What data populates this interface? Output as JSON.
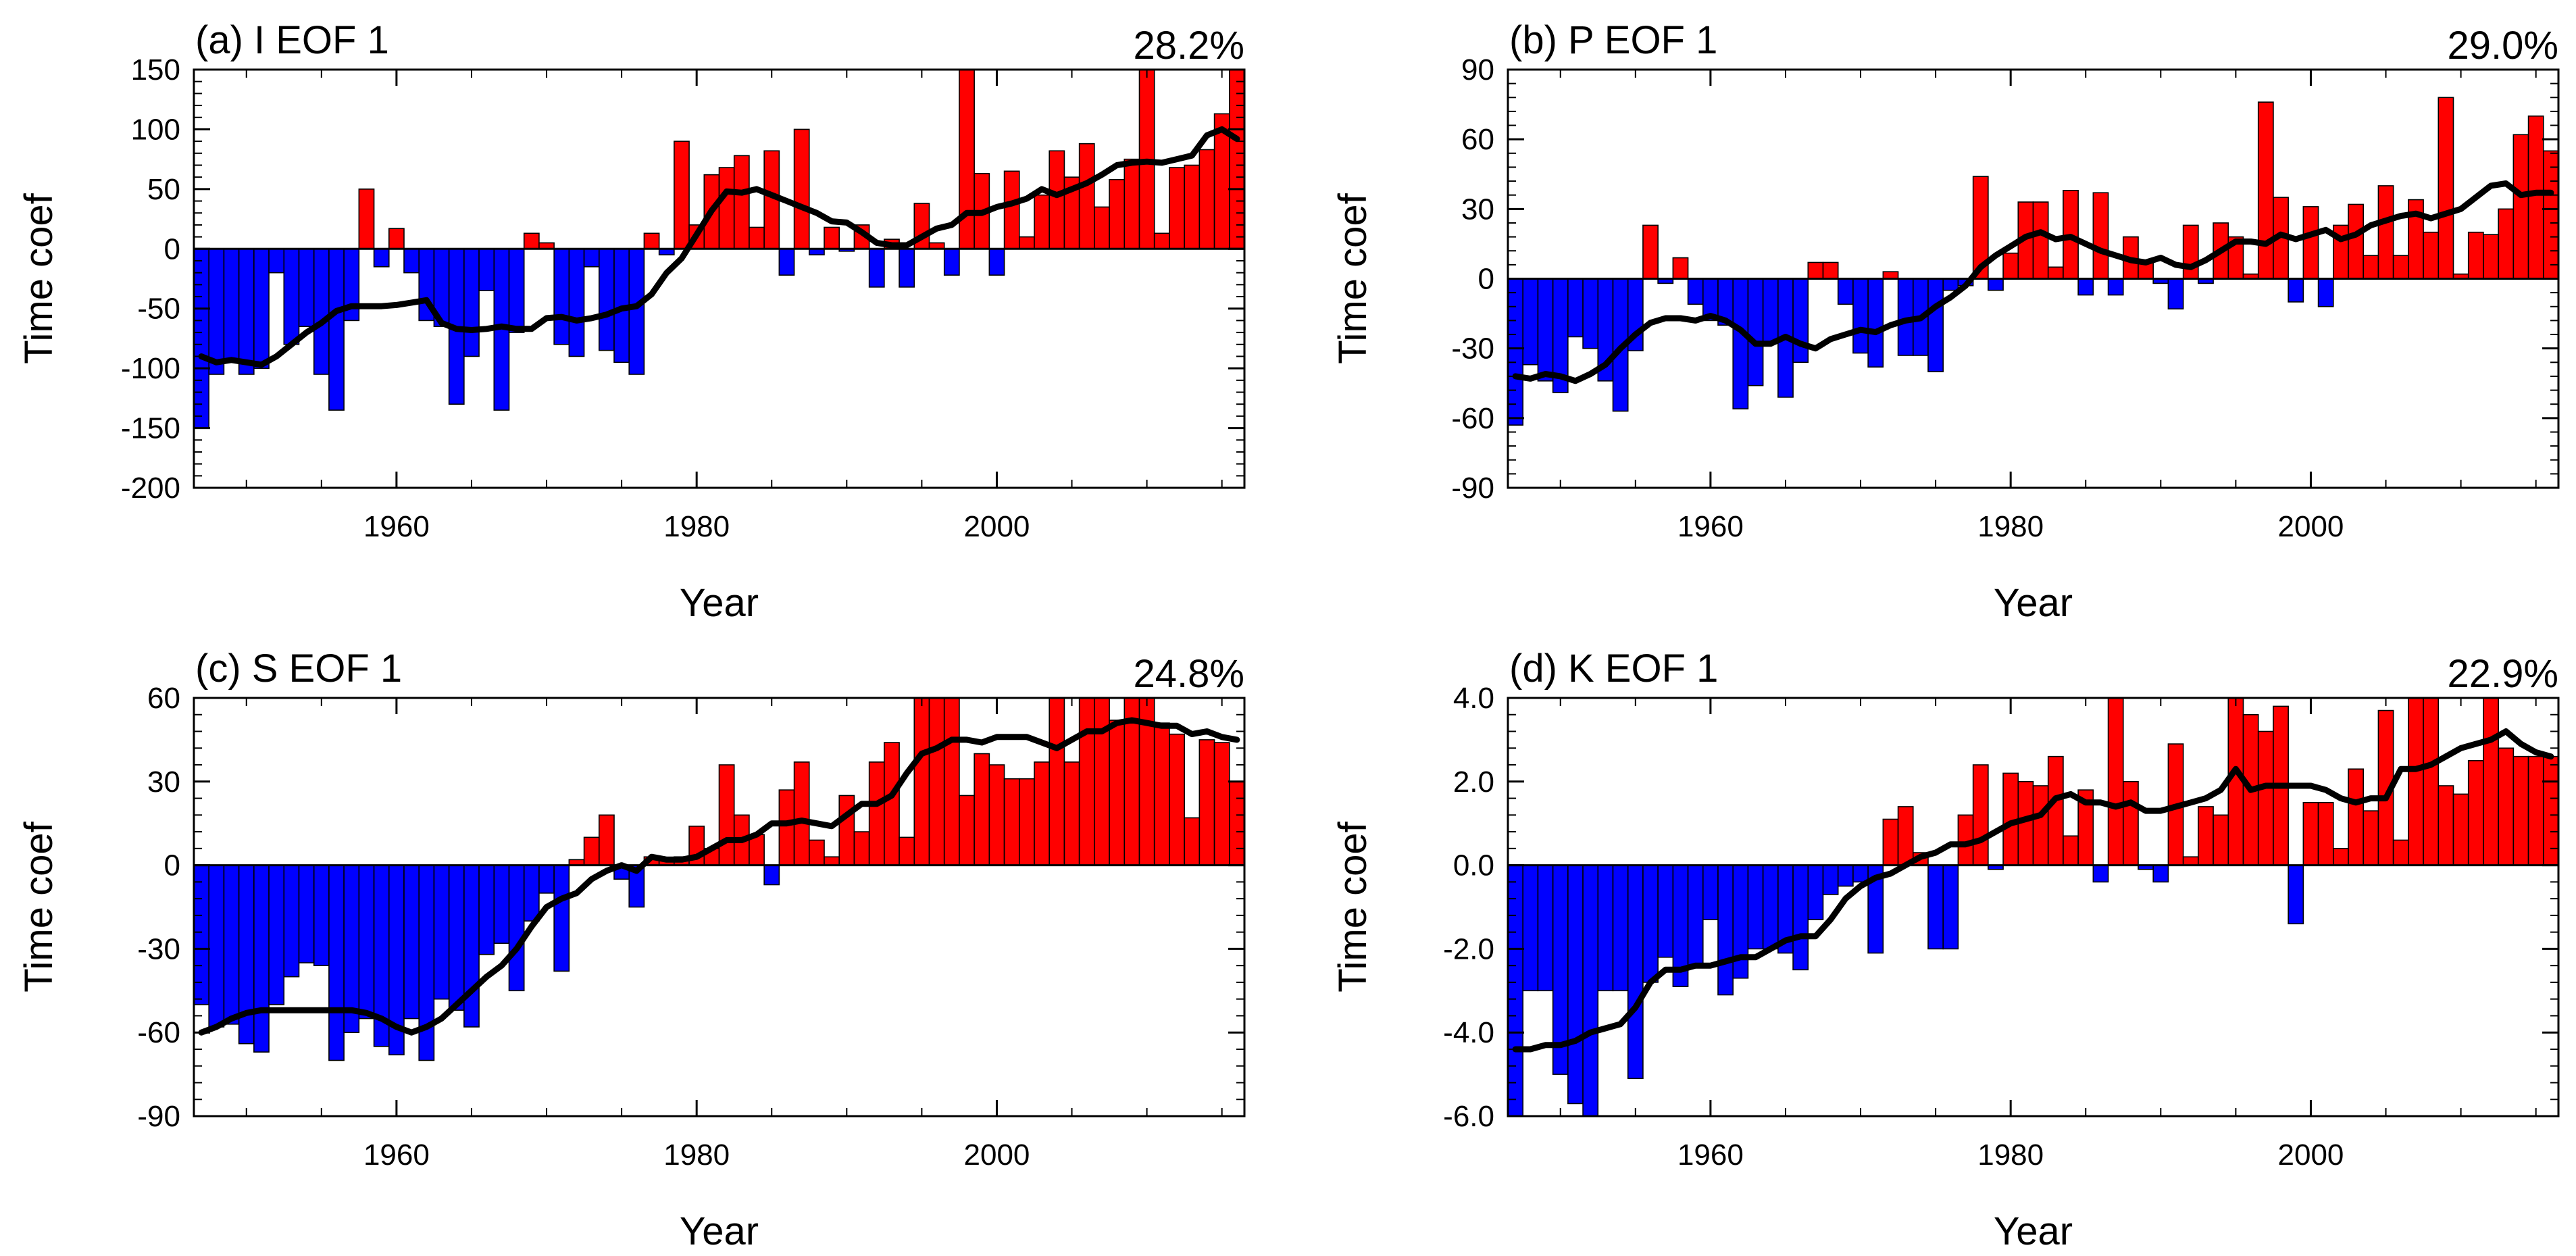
{
  "figure": {
    "x_axis_title": "Year",
    "y_axis_title": "Time coef"
  },
  "chart_data": [
    {
      "type": "bar",
      "title": "(a) I EOF 1",
      "variance": "28.2%",
      "xlabel": "Year",
      "ylabel": "Time coef",
      "xlim": [
        1947,
        2016
      ],
      "ylim": [
        -200,
        150
      ],
      "yticks": [
        -200,
        -150,
        -100,
        -50,
        0,
        50,
        100,
        150
      ],
      "ytick_labels": [
        "-200",
        "-150",
        "-100",
        "-50",
        "0",
        "50",
        "100",
        "150"
      ],
      "xticks": [
        1960,
        1980,
        2000
      ],
      "xtick_labels": [
        "1960",
        "1980",
        "2000"
      ],
      "grid": false,
      "colors": {
        "positive": "#ff0000",
        "negative": "#0000ff",
        "smooth": "#000000"
      },
      "years": [
        1947,
        1948,
        1949,
        1950,
        1951,
        1952,
        1953,
        1954,
        1955,
        1956,
        1957,
        1958,
        1959,
        1960,
        1961,
        1962,
        1963,
        1964,
        1965,
        1966,
        1967,
        1968,
        1969,
        1970,
        1971,
        1972,
        1973,
        1974,
        1975,
        1976,
        1977,
        1978,
        1979,
        1980,
        1981,
        1982,
        1983,
        1984,
        1985,
        1986,
        1987,
        1988,
        1989,
        1990,
        1991,
        1992,
        1993,
        1994,
        1995,
        1996,
        1997,
        1998,
        1999,
        2000,
        2001,
        2002,
        2003,
        2004,
        2005,
        2006,
        2007,
        2008,
        2009,
        2010,
        2011,
        2012,
        2013,
        2014,
        2015,
        2016
      ],
      "values": [
        -150,
        -105,
        -95,
        -105,
        -100,
        -20,
        -80,
        -65,
        -105,
        -135,
        -60,
        50,
        -15,
        17,
        -20,
        -60,
        -65,
        -130,
        -90,
        -35,
        -135,
        -70,
        13,
        5,
        -80,
        -90,
        -15,
        -85,
        -95,
        -105,
        13,
        -5,
        90,
        20,
        62,
        68,
        78,
        18,
        82,
        -22,
        100,
        -5,
        18,
        -2,
        20,
        -32,
        8,
        -32,
        38,
        5,
        -22,
        150,
        63,
        -22,
        65,
        10,
        45,
        82,
        60,
        88,
        35,
        58,
        75,
        150,
        13,
        68,
        70,
        83,
        113,
        150
      ],
      "smooth": [
        -90,
        -95,
        -93,
        -95,
        -97,
        -90,
        -80,
        -70,
        -62,
        -52,
        -48,
        -48,
        -48,
        -47,
        -45,
        -43,
        -62,
        -67,
        -68,
        -67,
        -65,
        -67,
        -67,
        -58,
        -57,
        -60,
        -58,
        -55,
        -50,
        -48,
        -38,
        -20,
        -8,
        12,
        32,
        48,
        47,
        50,
        45,
        40,
        35,
        30,
        23,
        22,
        14,
        5,
        3,
        3,
        10,
        17,
        20,
        30,
        30,
        35,
        38,
        42,
        50,
        45,
        50,
        55,
        62,
        70,
        72,
        73,
        72,
        75,
        78,
        95,
        100,
        92
      ]
    },
    {
      "type": "bar",
      "title": "(b) P EOF 1",
      "variance": "29.0%",
      "xlabel": "Year",
      "ylabel": "Time coef",
      "xlim": [
        1947,
        2016
      ],
      "ylim": [
        -90,
        90
      ],
      "yticks": [
        -90,
        -60,
        -30,
        0,
        30,
        60,
        90
      ],
      "ytick_labels": [
        "-90",
        "-60",
        "-30",
        "0",
        "30",
        "60",
        "90"
      ],
      "xticks": [
        1960,
        1980,
        2000
      ],
      "xtick_labels": [
        "1960",
        "1980",
        "2000"
      ],
      "grid": false,
      "colors": {
        "positive": "#ff0000",
        "negative": "#0000ff",
        "smooth": "#000000"
      },
      "years": [
        1947,
        1948,
        1949,
        1950,
        1951,
        1952,
        1953,
        1954,
        1955,
        1956,
        1957,
        1958,
        1959,
        1960,
        1961,
        1962,
        1963,
        1964,
        1965,
        1966,
        1967,
        1968,
        1969,
        1970,
        1971,
        1972,
        1973,
        1974,
        1975,
        1976,
        1977,
        1978,
        1979,
        1980,
        1981,
        1982,
        1983,
        1984,
        1985,
        1986,
        1987,
        1988,
        1989,
        1990,
        1991,
        1992,
        1993,
        1994,
        1995,
        1996,
        1997,
        1998,
        1999,
        2000,
        2001,
        2002,
        2003,
        2004,
        2005,
        2006,
        2007,
        2008,
        2009,
        2010,
        2011,
        2012,
        2013,
        2014,
        2015,
        2016
      ],
      "values": [
        -63,
        -37,
        -44,
        -49,
        -25,
        -30,
        -44,
        -57,
        -31,
        23,
        -2,
        9,
        -11,
        -18,
        -20,
        -56,
        -46,
        -27,
        -51,
        -36,
        7,
        7,
        -11,
        -32,
        -38,
        3,
        -33,
        -33,
        -40,
        -5,
        -3,
        44,
        -5,
        11,
        33,
        33,
        5,
        38,
        -7,
        37,
        -7,
        18,
        8,
        -2,
        -13,
        23,
        -2,
        24,
        18,
        2,
        76,
        35,
        -10,
        31,
        -12,
        23,
        32,
        10,
        40,
        10,
        34,
        20,
        78,
        2,
        20,
        19,
        30,
        62,
        70,
        55
      ],
      "smooth": [
        -42,
        -43,
        -41,
        -42,
        -44,
        -41,
        -37,
        -30,
        -24,
        -19,
        -17,
        -17,
        -18,
        -16,
        -18,
        -22,
        -28,
        -28,
        -25,
        -28,
        -30,
        -26,
        -24,
        -22,
        -23,
        -20,
        -18,
        -17,
        -12,
        -8,
        -3,
        5,
        10,
        14,
        18,
        20,
        17,
        18,
        15,
        12,
        10,
        8,
        7,
        9,
        6,
        5,
        8,
        12,
        16,
        16,
        15,
        19,
        17,
        19,
        21,
        17,
        19,
        23,
        25,
        27,
        28,
        26,
        28,
        30,
        35,
        40,
        41,
        36,
        37,
        37
      ]
    },
    {
      "type": "bar",
      "title": "(c) S EOF 1",
      "variance": "24.8%",
      "xlabel": "Year",
      "ylabel": "Time coef",
      "xlim": [
        1947,
        2016
      ],
      "ylim": [
        -90,
        60
      ],
      "yticks": [
        -90,
        -60,
        -30,
        0,
        30,
        60
      ],
      "ytick_labels": [
        "-90",
        "-60",
        "-30",
        "0",
        "30",
        "60"
      ],
      "xticks": [
        1960,
        1980,
        2000
      ],
      "xtick_labels": [
        "1960",
        "1980",
        "2000"
      ],
      "grid": false,
      "colors": {
        "positive": "#ff0000",
        "negative": "#0000ff",
        "smooth": "#000000"
      },
      "years": [
        1947,
        1948,
        1949,
        1950,
        1951,
        1952,
        1953,
        1954,
        1955,
        1956,
        1957,
        1958,
        1959,
        1960,
        1961,
        1962,
        1963,
        1964,
        1965,
        1966,
        1967,
        1968,
        1969,
        1970,
        1971,
        1972,
        1973,
        1974,
        1975,
        1976,
        1977,
        1978,
        1979,
        1980,
        1981,
        1982,
        1983,
        1984,
        1985,
        1986,
        1987,
        1988,
        1989,
        1990,
        1991,
        1992,
        1993,
        1994,
        1995,
        1996,
        1997,
        1998,
        1999,
        2000,
        2001,
        2002,
        2003,
        2004,
        2005,
        2006,
        2007,
        2008,
        2009,
        2010,
        2011,
        2012,
        2013,
        2014,
        2015,
        2016
      ],
      "values": [
        -50,
        -58,
        -57,
        -64,
        -67,
        -50,
        -40,
        -35,
        -36,
        -70,
        -60,
        -55,
        -65,
        -68,
        -55,
        -70,
        -48,
        -52,
        -58,
        -32,
        -28,
        -45,
        -20,
        -10,
        -38,
        2,
        10,
        18,
        -5,
        -15,
        3,
        2,
        3,
        14,
        6,
        36,
        18,
        11,
        -7,
        27,
        37,
        9,
        3,
        25,
        12,
        37,
        44,
        10,
        60,
        60,
        60,
        25,
        40,
        36,
        31,
        31,
        37,
        60,
        37,
        60,
        60,
        52,
        60,
        60,
        51,
        47,
        17,
        45,
        44,
        30
      ],
      "smooth": [
        -60,
        -58,
        -55,
        -53,
        -52,
        -52,
        -52,
        -52,
        -52,
        -52,
        -52,
        -53,
        -55,
        -58,
        -60,
        -58,
        -55,
        -50,
        -45,
        -40,
        -36,
        -30,
        -22,
        -15,
        -12,
        -10,
        -5,
        -2,
        0,
        -2,
        3,
        2,
        2,
        3,
        6,
        9,
        9,
        11,
        15,
        15,
        16,
        15,
        14,
        18,
        22,
        22,
        25,
        33,
        40,
        42,
        45,
        45,
        44,
        46,
        46,
        46,
        44,
        42,
        45,
        48,
        48,
        51,
        52,
        51,
        50,
        50,
        47,
        48,
        46,
        45
      ]
    },
    {
      "type": "bar",
      "title": "(d) K EOF 1",
      "variance": "22.9%",
      "xlabel": "Year",
      "ylabel": "Time coef",
      "xlim": [
        1947,
        2016
      ],
      "ylim": [
        -6,
        4
      ],
      "yticks": [
        -6,
        -4,
        -2,
        0,
        2,
        4
      ],
      "ytick_labels": [
        "-6.0",
        "-4.0",
        "-2.0",
        "0.0",
        "2.0",
        "4.0"
      ],
      "xticks": [
        1960,
        1980,
        2000
      ],
      "xtick_labels": [
        "1960",
        "1980",
        "2000"
      ],
      "grid": false,
      "colors": {
        "positive": "#ff0000",
        "negative": "#0000ff",
        "smooth": "#000000"
      },
      "years": [
        1947,
        1948,
        1949,
        1950,
        1951,
        1952,
        1953,
        1954,
        1955,
        1956,
        1957,
        1958,
        1959,
        1960,
        1961,
        1962,
        1963,
        1964,
        1965,
        1966,
        1967,
        1968,
        1969,
        1970,
        1971,
        1972,
        1973,
        1974,
        1975,
        1976,
        1977,
        1978,
        1979,
        1980,
        1981,
        1982,
        1983,
        1984,
        1985,
        1986,
        1987,
        1988,
        1989,
        1990,
        1991,
        1992,
        1993,
        1994,
        1995,
        1996,
        1997,
        1998,
        1999,
        2000,
        2001,
        2002,
        2003,
        2004,
        2005,
        2006,
        2007,
        2008,
        2009,
        2010,
        2011,
        2012,
        2013,
        2014,
        2015,
        2016
      ],
      "values": [
        -6,
        -3,
        -3,
        -5,
        -5.7,
        -6,
        -3,
        -3,
        -5.1,
        -2.8,
        -2.2,
        -2.9,
        -2.4,
        -1.3,
        -3.1,
        -2.7,
        -2.0,
        -2.0,
        -2.1,
        -2.5,
        -1.3,
        -0.7,
        -0.5,
        -0.4,
        -2.1,
        1.1,
        1.4,
        0.3,
        -2.0,
        -2.0,
        1.2,
        2.4,
        -0.1,
        2.2,
        2.0,
        1.9,
        2.6,
        0.7,
        1.8,
        -0.4,
        4.0,
        2.0,
        -0.1,
        -0.4,
        2.9,
        0.2,
        1.4,
        1.2,
        4.0,
        3.6,
        3.2,
        3.8,
        -1.4,
        1.5,
        1.5,
        0.4,
        2.3,
        1.3,
        3.7,
        0.6,
        4.0,
        4.0,
        1.9,
        1.7,
        2.5,
        4.0,
        2.8,
        2.6,
        2.6,
        2.6
      ],
      "smooth": [
        -4.4,
        -4.4,
        -4.3,
        -4.3,
        -4.2,
        -4.0,
        -3.9,
        -3.8,
        -3.4,
        -2.8,
        -2.5,
        -2.5,
        -2.4,
        -2.4,
        -2.3,
        -2.2,
        -2.2,
        -2.0,
        -1.8,
        -1.7,
        -1.7,
        -1.3,
        -0.8,
        -0.5,
        -0.3,
        -0.2,
        0.0,
        0.2,
        0.3,
        0.5,
        0.5,
        0.6,
        0.8,
        1.0,
        1.1,
        1.2,
        1.6,
        1.7,
        1.5,
        1.5,
        1.4,
        1.5,
        1.3,
        1.3,
        1.4,
        1.5,
        1.6,
        1.8,
        2.3,
        1.8,
        1.9,
        1.9,
        1.9,
        1.9,
        1.8,
        1.6,
        1.5,
        1.6,
        1.6,
        2.3,
        2.3,
        2.4,
        2.6,
        2.8,
        2.9,
        3.0,
        3.2,
        2.9,
        2.7,
        2.6
      ]
    }
  ]
}
